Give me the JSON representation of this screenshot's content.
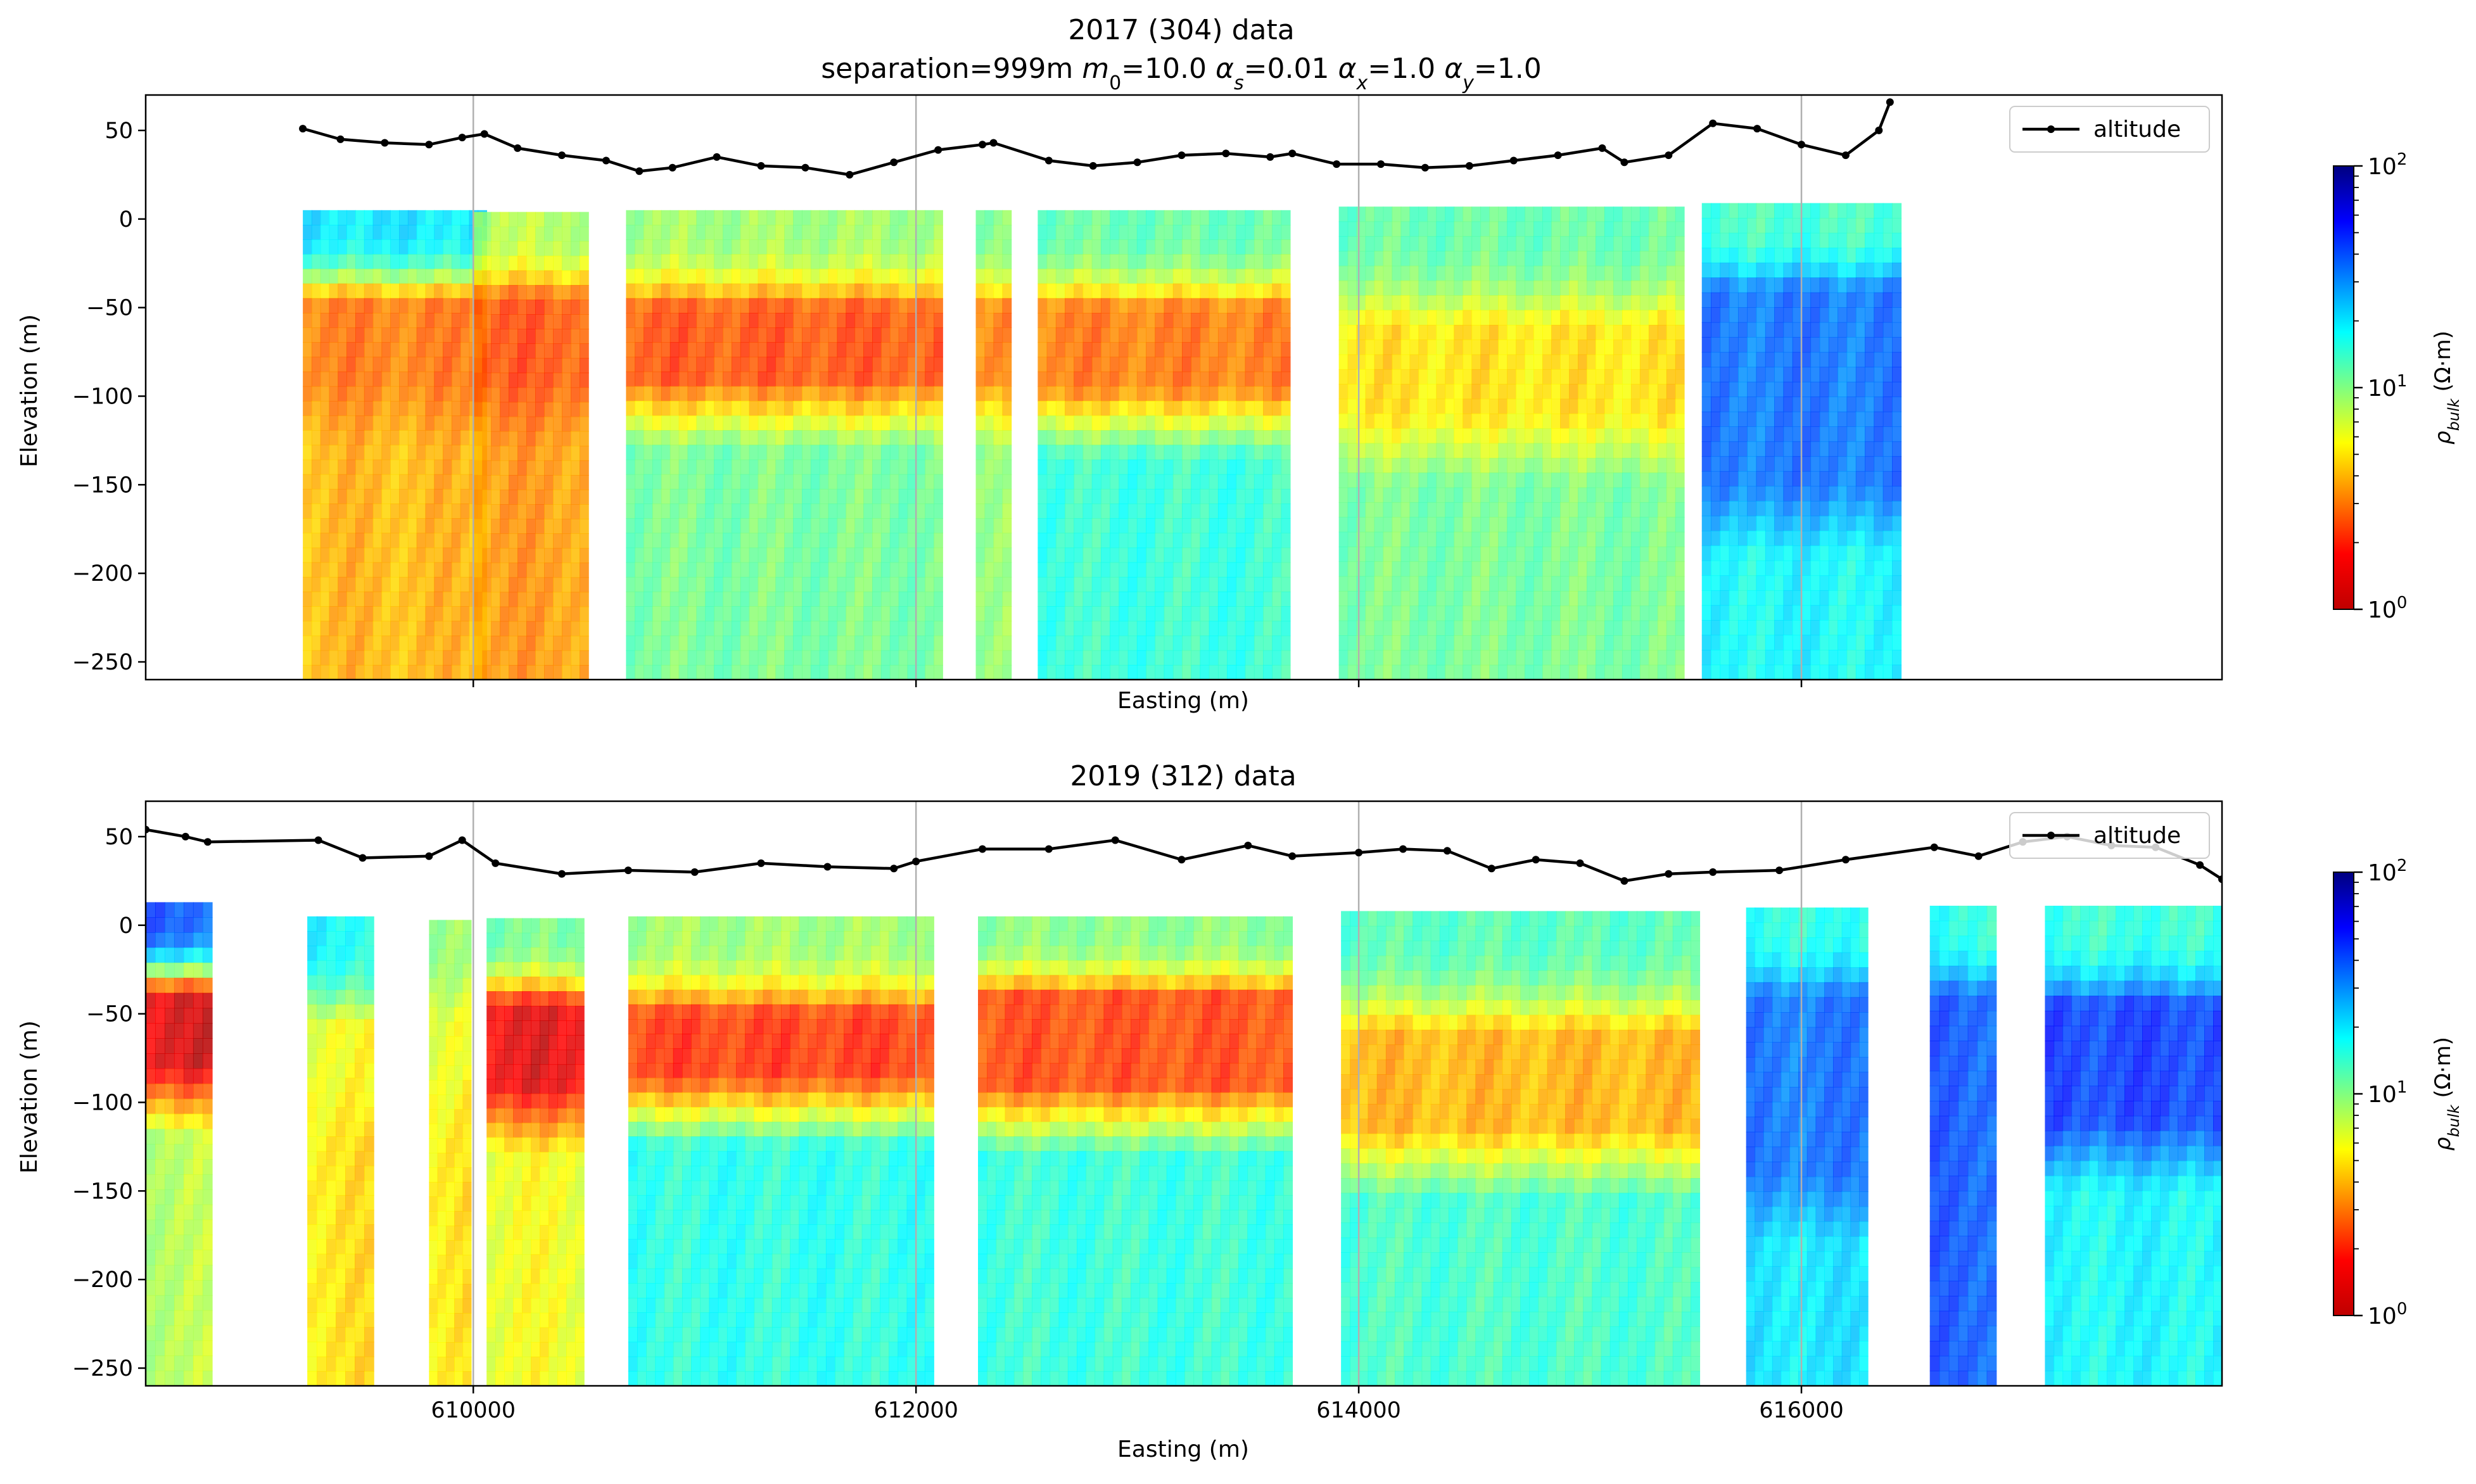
{
  "figure": {
    "title_line1": "2017 (304) data",
    "title_line2": "separation=999m  m0=10.0  αs=0.01    αx=1.0   αy=1.0",
    "title_parts": {
      "separation": "separation=999m",
      "m0_value": "=10.0",
      "alpha_s_value": "=0.01",
      "alpha_x_value": "=1.0",
      "alpha_y_value": "=1.0"
    }
  },
  "colors": {
    "altitude_line": "#000000",
    "gridline": "#b0b0b0",
    "colormap": "jet_r (red = low resistivity, blue = high resistivity)"
  },
  "chart_data": [
    {
      "type": "heatmap",
      "title": "2017 (304) data",
      "xlabel": "Easting (m)",
      "ylabel": "Elevation (m)",
      "xlim": [
        608520,
        617900
      ],
      "ylim": [
        -260,
        70
      ],
      "x_ticks": [
        610000,
        612000,
        614000,
        616000
      ],
      "x_tick_labels_visible": false,
      "y_ticks": [
        50,
        0,
        -50,
        -100,
        -150,
        -200,
        -250
      ],
      "y_tick_labels": [
        "50",
        "0",
        "−50",
        "−100",
        "−150",
        "−200",
        "−250"
      ],
      "grid": "vertical lines at x ticks",
      "legend": {
        "position": "top-right",
        "entries": [
          "altitude"
        ]
      },
      "colorbar": {
        "label": "ρbulk (Ω·m)",
        "scale": "log",
        "range": [
          1,
          100
        ],
        "tick_labels": [
          "10^0",
          "10^1",
          "10^2"
        ]
      },
      "altitude_series": {
        "name": "altitude",
        "x": [
          609230,
          609400,
          609600,
          609800,
          609950,
          610050,
          610200,
          610400,
          610600,
          610750,
          610900,
          611100,
          611300,
          611500,
          611700,
          611900,
          612100,
          612300,
          612350,
          612600,
          612800,
          613000,
          613200,
          613400,
          613600,
          613700,
          613900,
          614100,
          614300,
          614500,
          614700,
          614900,
          615100,
          615200,
          615400,
          615600,
          615800,
          616000,
          616200,
          616350,
          616400
        ],
        "y": [
          51,
          45,
          43,
          42,
          46,
          48,
          40,
          36,
          33,
          27,
          29,
          35,
          30,
          29,
          25,
          32,
          39,
          42,
          43,
          33,
          30,
          32,
          36,
          37,
          35,
          37,
          31,
          31,
          29,
          30,
          33,
          36,
          40,
          32,
          36,
          54,
          51,
          42,
          36,
          50,
          66
        ]
      },
      "resistivity_panels": [
        {
          "x0": 609230,
          "x1": 610060,
          "top": 5,
          "shallow_ohm_m": 20,
          "layer_top": -45,
          "layer_bottom": -90,
          "layer_ohm_m": 3,
          "deep_ohm_m": 4
        },
        {
          "x0": 610000,
          "x1": 610520,
          "top": 4,
          "shallow_ohm_m": 8,
          "layer_top": -45,
          "layer_bottom": -90,
          "layer_ohm_m": 2.5,
          "deep_ohm_m": 3.5
        },
        {
          "x0": 610690,
          "x1": 612120,
          "top": 5,
          "shallow_ohm_m": 9,
          "layer_top": -50,
          "layer_bottom": -90,
          "layer_ohm_m": 2.5,
          "deep_ohm_m": 11
        },
        {
          "x0": 612270,
          "x1": 612430,
          "top": 5,
          "shallow_ohm_m": 10,
          "layer_top": -50,
          "layer_bottom": -90,
          "layer_ohm_m": 3,
          "deep_ohm_m": 9
        },
        {
          "x0": 612550,
          "x1": 613690,
          "top": 5,
          "shallow_ohm_m": 12,
          "layer_top": -50,
          "layer_bottom": -95,
          "layer_ohm_m": 3,
          "deep_ohm_m": 15
        },
        {
          "x0": 613910,
          "x1": 615470,
          "top": 7,
          "shallow_ohm_m": 12,
          "layer_top": -60,
          "layer_bottom": -110,
          "layer_ohm_m": 5,
          "deep_ohm_m": 11
        },
        {
          "x0": 615550,
          "x1": 616450,
          "top": 9,
          "shallow_ohm_m": 14,
          "layer_top": -40,
          "layer_bottom": -150,
          "layer_ohm_m": 35,
          "deep_ohm_m": 18
        }
      ]
    },
    {
      "type": "heatmap",
      "title": "2019 (312) data",
      "xlabel": "Easting (m)",
      "ylabel": "Elevation (m)",
      "xlim": [
        608520,
        617900
      ],
      "ylim": [
        -260,
        70
      ],
      "x_ticks": [
        610000,
        612000,
        614000,
        616000
      ],
      "x_tick_labels": [
        "610000",
        "612000",
        "614000",
        "616000"
      ],
      "y_ticks": [
        50,
        0,
        -50,
        -100,
        -150,
        -200,
        -250
      ],
      "y_tick_labels": [
        "50",
        "0",
        "−50",
        "−100",
        "−150",
        "−200",
        "−250"
      ],
      "grid": "vertical lines at x ticks",
      "legend": {
        "position": "top-right",
        "entries": [
          "altitude"
        ]
      },
      "colorbar": {
        "label": "ρbulk (Ω·m)",
        "scale": "log",
        "range": [
          1,
          100
        ],
        "tick_labels": [
          "10^0",
          "10^1",
          "10^2"
        ]
      },
      "altitude_series": {
        "name": "altitude",
        "x": [
          608520,
          608700,
          608800,
          609300,
          609500,
          609800,
          609950,
          610100,
          610400,
          610700,
          611000,
          611300,
          611600,
          611900,
          612000,
          612300,
          612600,
          612900,
          613200,
          613500,
          613700,
          614000,
          614200,
          614400,
          614600,
          614800,
          615000,
          615200,
          615400,
          615600,
          615900,
          616200,
          616600,
          616800,
          617000,
          617200,
          617400,
          617600,
          617800,
          617900
        ],
        "y": [
          54,
          50,
          47,
          48,
          38,
          39,
          48,
          35,
          29,
          31,
          30,
          35,
          33,
          32,
          36,
          43,
          43,
          48,
          37,
          45,
          39,
          41,
          43,
          42,
          32,
          37,
          35,
          25,
          29,
          30,
          31,
          37,
          44,
          39,
          47,
          50,
          45,
          44,
          34,
          26
        ]
      },
      "resistivity_panels": [
        {
          "x0": 608520,
          "x1": 608820,
          "top": 13,
          "shallow_ohm_m": 40,
          "layer_top": -38,
          "layer_bottom": -80,
          "layer_ohm_m": 1.5,
          "deep_ohm_m": 8
        },
        {
          "x0": 609250,
          "x1": 609550,
          "top": 5,
          "shallow_ohm_m": 18,
          "layer_top": -55,
          "layer_bottom": -85,
          "layer_ohm_m": 6,
          "deep_ohm_m": 5
        },
        {
          "x0": 609800,
          "x1": 609990,
          "top": 3,
          "shallow_ohm_m": 9,
          "layer_top": -55,
          "layer_bottom": -85,
          "layer_ohm_m": 6,
          "deep_ohm_m": 5
        },
        {
          "x0": 610060,
          "x1": 610500,
          "top": 4,
          "shallow_ohm_m": 11,
          "layer_top": -45,
          "layer_bottom": -90,
          "layer_ohm_m": 1.6,
          "deep_ohm_m": 6
        },
        {
          "x0": 610700,
          "x1": 612080,
          "top": 5,
          "shallow_ohm_m": 9,
          "layer_top": -50,
          "layer_bottom": -85,
          "layer_ohm_m": 2.2,
          "deep_ohm_m": 16
        },
        {
          "x0": 612280,
          "x1": 613700,
          "top": 5,
          "shallow_ohm_m": 10,
          "layer_top": -40,
          "layer_bottom": -90,
          "layer_ohm_m": 2.4,
          "deep_ohm_m": 15
        },
        {
          "x0": 613920,
          "x1": 615540,
          "top": 8,
          "shallow_ohm_m": 13,
          "layer_top": -60,
          "layer_bottom": -115,
          "layer_ohm_m": 4,
          "deep_ohm_m": 14
        },
        {
          "x0": 615750,
          "x1": 616300,
          "top": 10,
          "shallow_ohm_m": 16,
          "layer_top": -40,
          "layer_bottom": -140,
          "layer_ohm_m": 35,
          "deep_ohm_m": 20
        },
        {
          "x0": 616580,
          "x1": 616880,
          "top": 11,
          "shallow_ohm_m": 16,
          "layer_top": -40,
          "layer_bottom": -140,
          "layer_ohm_m": 40,
          "deep_ohm_m": 40
        },
        {
          "x0": 617100,
          "x1": 617900,
          "top": 11,
          "shallow_ohm_m": 15,
          "layer_top": -45,
          "layer_bottom": -110,
          "layer_ohm_m": 45,
          "deep_ohm_m": 18
        }
      ]
    }
  ]
}
